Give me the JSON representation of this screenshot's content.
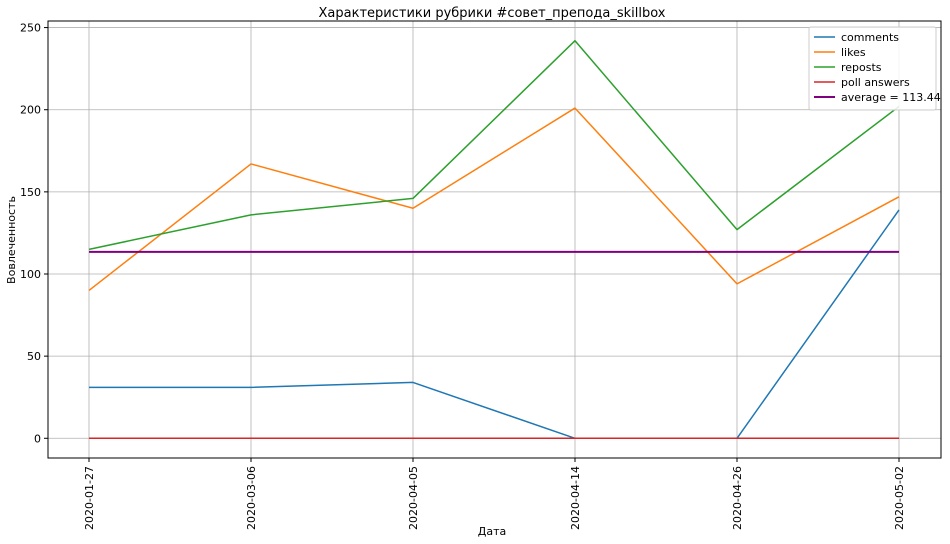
{
  "chart_data": {
    "type": "line",
    "title": "Характеристики рубрики #совет_препода_skillbox",
    "xlabel": "Дата",
    "ylabel": "Вовлеченность",
    "categories": [
      "2020-01-27",
      "2020-03-06",
      "2020-04-05",
      "2020-04-14",
      "2020-04-26",
      "2020-05-02"
    ],
    "ylim": [
      -12,
      254
    ],
    "yticks": [
      0,
      50,
      100,
      150,
      200,
      250
    ],
    "grid": true,
    "legend_position": "top-right",
    "series": [
      {
        "name": "comments",
        "color": "#1f77b4",
        "values": [
          31,
          31,
          34,
          0,
          0,
          139
        ]
      },
      {
        "name": "likes",
        "color": "#ff7f0e",
        "values": [
          90,
          167,
          140,
          201,
          94,
          147
        ]
      },
      {
        "name": "reposts",
        "color": "#2ca02c",
        "values": [
          115,
          136,
          146,
          242,
          127,
          202
        ]
      },
      {
        "name": "poll answers",
        "color": "#d62728",
        "values": [
          0,
          0,
          0,
          0,
          0,
          0
        ]
      },
      {
        "name": "average = 113.44",
        "color": "#800080",
        "values": [
          113.44,
          113.44,
          113.44,
          113.44,
          113.44,
          113.44
        ]
      }
    ]
  }
}
